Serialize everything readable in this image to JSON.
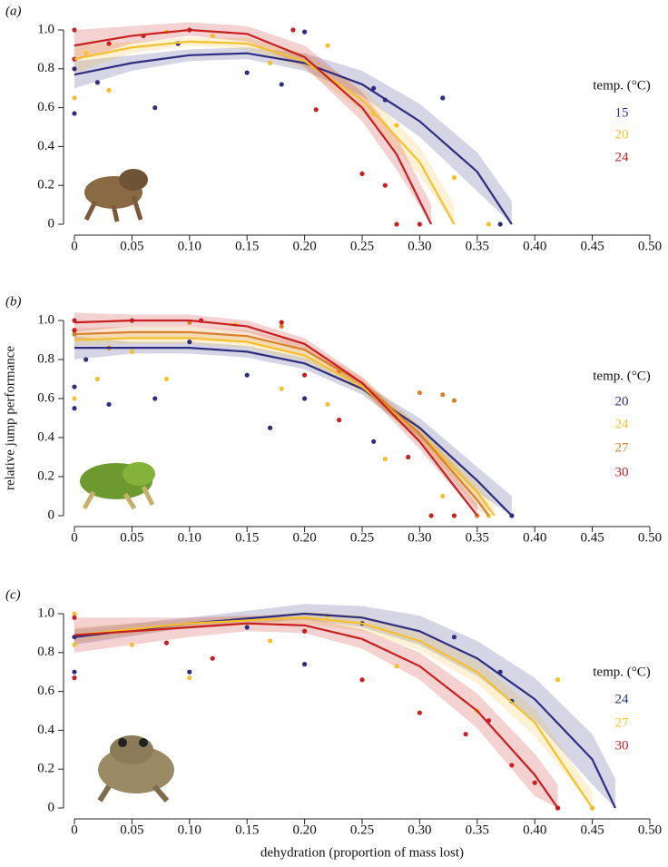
{
  "chart_data": [
    {
      "type": "scatter",
      "label": "(a)",
      "legend_title": "temp. (°C)",
      "xlim": [
        0,
        0.5
      ],
      "ylim": [
        0,
        1
      ],
      "xticks": [
        0,
        0.05,
        {
          "value": 0.1,
          "label": "0.10"
        },
        0.15,
        {
          "value": 0.2,
          "label": "0.20"
        },
        0.25,
        {
          "value": 0.3,
          "label": "0.30"
        },
        0.35,
        {
          "value": 0.4,
          "label": "0.40"
        },
        0.45,
        {
          "value": 0.5,
          "label": "0.50"
        }
      ],
      "yticks": [
        0,
        0.2,
        0.4,
        0.6,
        0.8,
        {
          "value": 1,
          "label": "1.0"
        }
      ],
      "series": [
        {
          "name": "15",
          "color": "#2e2d7f",
          "x": [
            0,
            0.05,
            0.1,
            0.15,
            0.2,
            0.25,
            0.3,
            0.35,
            0.38
          ],
          "y": [
            0.77,
            0.83,
            0.87,
            0.88,
            0.83,
            0.72,
            0.53,
            0.27,
            0
          ],
          "lower": [
            0.7,
            0.79,
            0.84,
            0.85,
            0.79,
            0.66,
            0.45,
            0.17,
            0
          ],
          "upper": [
            0.84,
            0.87,
            0.9,
            0.91,
            0.88,
            0.79,
            0.62,
            0.37,
            0.12
          ],
          "points_x": [
            0,
            0,
            0.02,
            0.07,
            0.09,
            0.15,
            0.18,
            0.2,
            0.26,
            0.27,
            0.32,
            0.37
          ],
          "points_y": [
            0.57,
            0.8,
            0.73,
            0.6,
            0.93,
            0.78,
            0.72,
            0.99,
            0.7,
            0.64,
            0.65,
            0
          ]
        },
        {
          "name": "20",
          "color": "#f5c02c",
          "x": [
            0,
            0.05,
            0.1,
            0.15,
            0.2,
            0.25,
            0.3,
            0.33
          ],
          "y": [
            0.85,
            0.91,
            0.94,
            0.93,
            0.84,
            0.64,
            0.32,
            0
          ],
          "lower": [
            0.78,
            0.88,
            0.92,
            0.9,
            0.8,
            0.58,
            0.25,
            0
          ],
          "upper": [
            0.92,
            0.94,
            0.96,
            0.96,
            0.88,
            0.7,
            0.4,
            0.1
          ],
          "points_x": [
            0,
            0.01,
            0.03,
            0.08,
            0.12,
            0.17,
            0.22,
            0.26,
            0.28,
            0.33,
            0.36
          ],
          "points_y": [
            0.65,
            0.88,
            0.69,
            0.99,
            0.97,
            0.83,
            0.92,
            0.57,
            0.51,
            0.24,
            0
          ]
        },
        {
          "name": "24",
          "color": "#c7201f",
          "x": [
            0,
            0.05,
            0.1,
            0.15,
            0.2,
            0.25,
            0.28,
            0.31
          ],
          "y": [
            0.92,
            0.97,
            1.0,
            0.98,
            0.86,
            0.6,
            0.36,
            0
          ],
          "lower": [
            0.84,
            0.93,
            0.97,
            0.94,
            0.81,
            0.53,
            0.28,
            0
          ],
          "upper": [
            1.0,
            1.02,
            1.04,
            1.02,
            0.92,
            0.68,
            0.45,
            0.1
          ],
          "points_x": [
            0,
            0,
            0.03,
            0.06,
            0.1,
            0.19,
            0.21,
            0.25,
            0.27,
            0.28,
            0.3
          ],
          "points_y": [
            1.0,
            0.85,
            0.93,
            0.97,
            1.0,
            1.0,
            0.59,
            0.26,
            0.2,
            0,
            0
          ]
        }
      ]
    },
    {
      "type": "scatter",
      "label": "(b)",
      "legend_title": "temp. (°C)",
      "ylabel": "relative jump performance",
      "xlim": [
        0,
        0.5
      ],
      "ylim": [
        0,
        1
      ],
      "xticks": [
        0,
        0.05,
        {
          "value": 0.1,
          "label": "0.10"
        },
        0.15,
        {
          "value": 0.2,
          "label": "0.20"
        },
        0.25,
        {
          "value": 0.3,
          "label": "0.30"
        },
        0.35,
        {
          "value": 0.4,
          "label": "0.40"
        },
        0.45,
        {
          "value": 0.5,
          "label": "0.50"
        }
      ],
      "yticks": [
        0,
        0.2,
        0.4,
        0.6,
        0.8,
        {
          "value": 1,
          "label": "1.0"
        }
      ],
      "series": [
        {
          "name": "20",
          "color": "#2e2d7f",
          "x": [
            0,
            0.05,
            0.1,
            0.15,
            0.2,
            0.25,
            0.3,
            0.35,
            0.38
          ],
          "y": [
            0.86,
            0.86,
            0.86,
            0.84,
            0.78,
            0.65,
            0.45,
            0.18,
            0
          ],
          "lower": [
            0.8,
            0.83,
            0.83,
            0.81,
            0.75,
            0.62,
            0.4,
            0.12,
            0
          ],
          "upper": [
            0.92,
            0.89,
            0.89,
            0.87,
            0.81,
            0.68,
            0.5,
            0.25,
            0.1
          ],
          "points_x": [
            0,
            0,
            0.01,
            0.03,
            0.07,
            0.1,
            0.15,
            0.17,
            0.2,
            0.26,
            0.28,
            0.38
          ],
          "points_y": [
            0.55,
            0.66,
            0.8,
            0.57,
            0.6,
            0.89,
            0.72,
            0.45,
            0.6,
            0.38,
            0.52,
            0
          ]
        },
        {
          "name": "24",
          "color": "#f5c02c",
          "x": [
            0,
            0.05,
            0.1,
            0.15,
            0.2,
            0.25,
            0.3,
            0.35,
            0.365
          ],
          "y": [
            0.9,
            0.91,
            0.91,
            0.89,
            0.82,
            0.66,
            0.42,
            0.12,
            0
          ],
          "lower": [
            0.87,
            0.88,
            0.88,
            0.86,
            0.79,
            0.63,
            0.38,
            0.07,
            0
          ],
          "upper": [
            0.93,
            0.94,
            0.94,
            0.92,
            0.85,
            0.69,
            0.46,
            0.17,
            0.06
          ],
          "points_x": [
            0,
            0.02,
            0.05,
            0.08,
            0.14,
            0.18,
            0.22,
            0.27,
            0.32,
            0.36
          ],
          "points_y": [
            0.6,
            0.7,
            0.84,
            0.7,
            0.98,
            0.65,
            0.57,
            0.29,
            0.1,
            0
          ]
        },
        {
          "name": "27",
          "color": "#d8802c",
          "x": [
            0,
            0.05,
            0.1,
            0.15,
            0.2,
            0.25,
            0.3,
            0.35,
            0.36
          ],
          "y": [
            0.93,
            0.94,
            0.94,
            0.92,
            0.85,
            0.68,
            0.42,
            0.08,
            0
          ],
          "lower": [
            0.9,
            0.91,
            0.91,
            0.89,
            0.82,
            0.65,
            0.38,
            0.03,
            0
          ],
          "upper": [
            0.96,
            0.97,
            0.97,
            0.95,
            0.88,
            0.71,
            0.46,
            0.13,
            0.06
          ],
          "points_x": [
            0,
            0.03,
            0.1,
            0.18,
            0.23,
            0.3,
            0.32,
            0.33,
            0.35
          ],
          "points_y": [
            0.93,
            0.86,
            0.99,
            0.97,
            0.74,
            0.63,
            0.62,
            0.59,
            0
          ]
        },
        {
          "name": "30",
          "color": "#c7201f",
          "x": [
            0,
            0.05,
            0.1,
            0.15,
            0.2,
            0.25,
            0.3,
            0.35
          ],
          "y": [
            0.99,
            1.0,
            1.0,
            0.97,
            0.88,
            0.68,
            0.38,
            0
          ],
          "lower": [
            0.94,
            0.97,
            0.97,
            0.94,
            0.85,
            0.65,
            0.34,
            0
          ],
          "upper": [
            1.04,
            1.03,
            1.03,
            1.0,
            0.91,
            0.71,
            0.42,
            0.06
          ],
          "points_x": [
            0,
            0,
            0.05,
            0.11,
            0.18,
            0.2,
            0.23,
            0.29,
            0.31,
            0.33
          ],
          "points_y": [
            1,
            0.95,
            1.0,
            1.0,
            0.99,
            0.72,
            0.49,
            0.3,
            0,
            0
          ]
        }
      ]
    },
    {
      "type": "scatter",
      "label": "(c)",
      "legend_title": "temp. (°C)",
      "xlabel": "dehydration (proportion of mass lost)",
      "xlim": [
        0,
        0.5
      ],
      "ylim": [
        0,
        1
      ],
      "xticks": [
        0,
        0.05,
        {
          "value": 0.1,
          "label": "0.10"
        },
        0.15,
        {
          "value": 0.2,
          "label": "0.20"
        },
        0.25,
        {
          "value": 0.3,
          "label": "0.30"
        },
        0.35,
        {
          "value": 0.4,
          "label": "0.40"
        },
        0.45,
        {
          "value": 0.5,
          "label": "0.50"
        }
      ],
      "yticks": [
        0,
        0.2,
        0.4,
        0.6,
        0.8,
        {
          "value": 1,
          "label": "1.0"
        }
      ],
      "series": [
        {
          "name": "24",
          "color": "#2e2d7f",
          "x": [
            0,
            0.1,
            0.2,
            0.25,
            0.3,
            0.35,
            0.4,
            0.45,
            0.47
          ],
          "y": [
            0.88,
            0.95,
            1.0,
            0.98,
            0.91,
            0.77,
            0.56,
            0.25,
            0
          ],
          "lower": [
            0.84,
            0.93,
            0.97,
            0.93,
            0.84,
            0.68,
            0.45,
            0.12,
            0
          ],
          "upper": [
            0.92,
            0.98,
            1.05,
            1.04,
            0.99,
            0.86,
            0.67,
            0.38,
            0.15
          ],
          "points_x": [
            0,
            0,
            0.1,
            0.15,
            0.2,
            0.25,
            0.33,
            0.37,
            0.38,
            0.42,
            0.45
          ],
          "points_y": [
            0.88,
            0.7,
            0.7,
            0.93,
            0.74,
            0.95,
            0.88,
            0.7,
            0.55,
            0,
            0
          ]
        },
        {
          "name": "27",
          "color": "#f5c02c",
          "x": [
            0,
            0.1,
            0.2,
            0.25,
            0.3,
            0.35,
            0.4,
            0.45
          ],
          "y": [
            0.89,
            0.95,
            0.98,
            0.95,
            0.86,
            0.7,
            0.44,
            0
          ],
          "lower": [
            0.85,
            0.93,
            0.95,
            0.91,
            0.81,
            0.64,
            0.37,
            0
          ],
          "upper": [
            0.93,
            0.97,
            1.01,
            0.99,
            0.91,
            0.76,
            0.51,
            0.08
          ],
          "points_x": [
            0,
            0,
            0.05,
            0.1,
            0.17,
            0.22,
            0.28,
            0.35,
            0.42,
            0.45
          ],
          "points_y": [
            1,
            0.84,
            0.84,
            0.67,
            0.86,
            0.99,
            0.73,
            0.5,
            0.66,
            0
          ]
        },
        {
          "name": "30",
          "color": "#c7201f",
          "x": [
            0,
            0.1,
            0.15,
            0.2,
            0.25,
            0.3,
            0.35,
            0.4,
            0.42
          ],
          "y": [
            0.89,
            0.93,
            0.95,
            0.94,
            0.87,
            0.73,
            0.5,
            0.17,
            0
          ],
          "lower": [
            0.8,
            0.88,
            0.91,
            0.9,
            0.82,
            0.66,
            0.41,
            0.06,
            0
          ],
          "upper": [
            0.98,
            0.98,
            0.99,
            0.98,
            0.92,
            0.8,
            0.59,
            0.28,
            0.12
          ],
          "points_x": [
            0,
            0,
            0.08,
            0.12,
            0.2,
            0.25,
            0.3,
            0.34,
            0.36,
            0.38,
            0.4,
            0.42
          ],
          "points_y": [
            0.98,
            0.67,
            0.85,
            0.77,
            0.91,
            0.66,
            0.49,
            0.38,
            0.45,
            0.22,
            0.13,
            0
          ]
        }
      ]
    }
  ]
}
